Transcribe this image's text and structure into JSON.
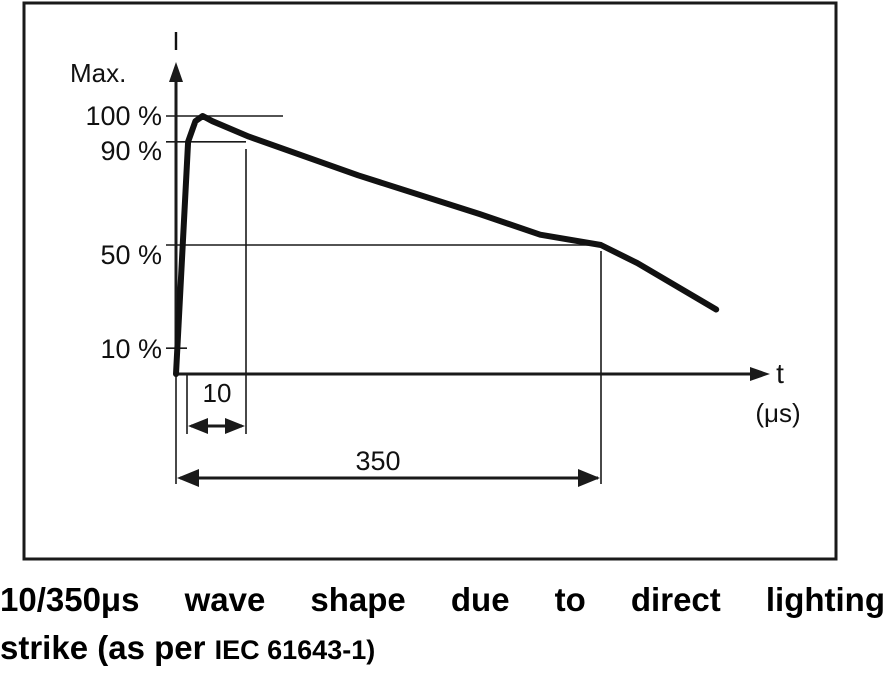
{
  "figure": {
    "y_axis_symbol": "I",
    "y_axis_max_label": "Max.",
    "level_labels": [
      "100 %",
      "90 %",
      "50 %",
      "10 %"
    ],
    "x_axis_symbol": "t",
    "x_axis_unit": "(μs)",
    "front_time_label": "10",
    "half_value_time_label": "350"
  },
  "chart_data": {
    "type": "line",
    "x_unit": "μs",
    "y_unit": "% of Max.",
    "levels": [
      100,
      90,
      50,
      10
    ],
    "front_time": 10,
    "time_to_half_value": 350,
    "x": [
      0,
      10,
      16,
      22,
      30,
      60,
      150,
      250,
      300,
      350,
      380,
      445
    ],
    "y": [
      0,
      90,
      98,
      100,
      98,
      92,
      77,
      62,
      54,
      50,
      43,
      25
    ]
  },
  "caption": {
    "line1": "10/350μs wave shape due to direct lighting",
    "line2_main": "strike (as per",
    "line2_standard": "IEC 61643-1)"
  },
  "colors": {
    "stroke": "#1a1a1a",
    "curve": "#111111",
    "background": "#ffffff"
  }
}
